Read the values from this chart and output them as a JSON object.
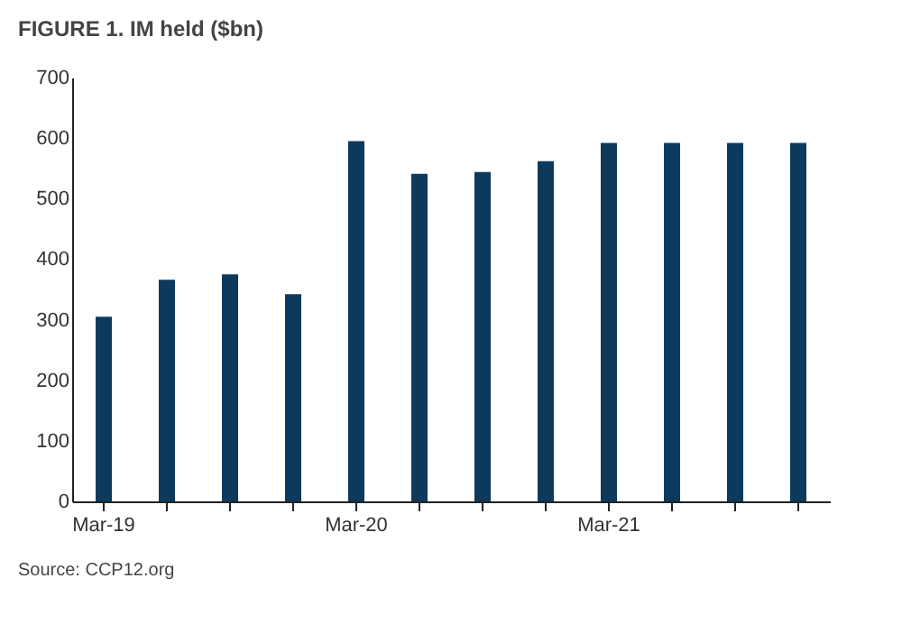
{
  "chart_data": {
    "type": "bar",
    "title": "FIGURE 1. IM held ($bn)",
    "categories": [
      "Mar-19",
      null,
      null,
      null,
      "Mar-20",
      null,
      null,
      null,
      "Mar-21",
      null,
      null,
      null
    ],
    "values": [
      305,
      366,
      375,
      342,
      595,
      541,
      544,
      562,
      592,
      592,
      592,
      592
    ],
    "color": "#0d3a5c",
    "ylim": [
      0,
      700
    ],
    "yticks": [
      0,
      100,
      200,
      300,
      400,
      500,
      600,
      700
    ],
    "grid": false,
    "annotations": [
      "Source: CCP12.org"
    ]
  }
}
